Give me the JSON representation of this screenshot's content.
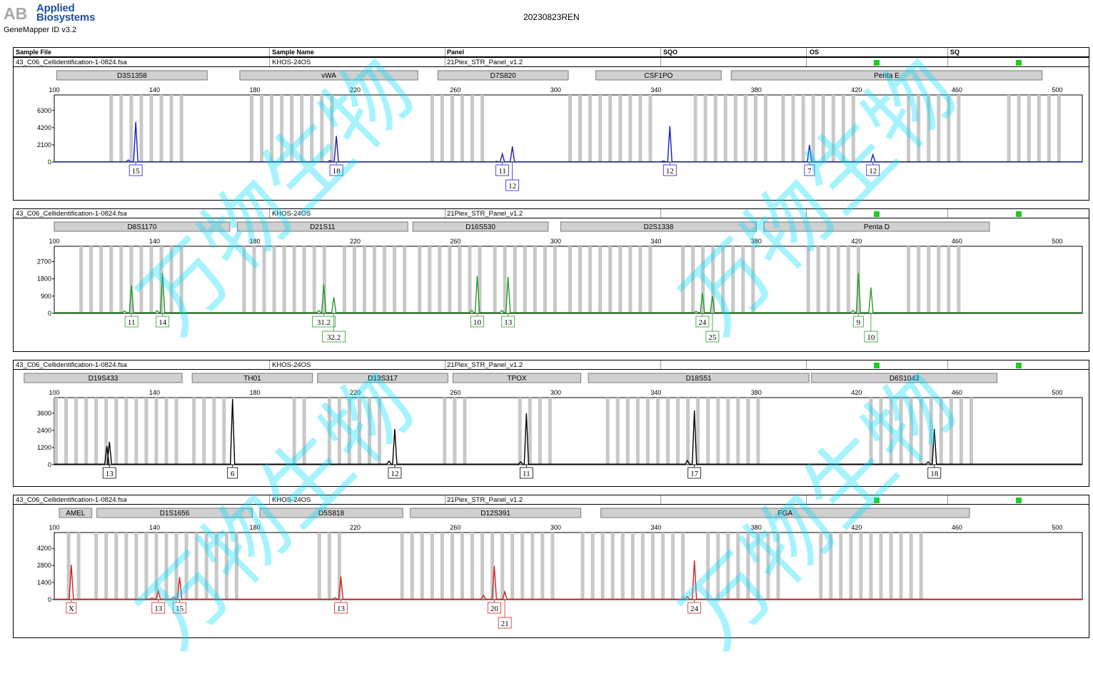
{
  "header": {
    "logo_line1": "Applied",
    "logo_line2": "Biosystems",
    "logo_mark": "AB",
    "software": "GeneMapper ID v3.2",
    "report_title": "20230823REN"
  },
  "columns": {
    "sample_file": "Sample File",
    "sample_name": "Sample Name",
    "panel": "Panel",
    "sqo": "SQO",
    "os": "OS",
    "sq": "SQ"
  },
  "status_colors": {
    "flag": "#22cc22"
  },
  "watermark": "万物生物",
  "chart_data": [
    {
      "type": "line",
      "sample_file": "43_C06_Cellidentification-1-0824.fsa",
      "sample_name": "KHOS-24OS",
      "panel": "21Plex_STR_Panel_v1.2",
      "color": "#1a1acc",
      "xlim": [
        100,
        510
      ],
      "xticks": [
        100,
        140,
        180,
        220,
        260,
        300,
        340,
        380,
        420,
        460,
        500
      ],
      "ylim": [
        0,
        8200
      ],
      "yticks": [
        0,
        2100,
        4200,
        6300
      ],
      "grid": "allelic bins",
      "markers": [
        {
          "name": "D3S1358",
          "start": 101,
          "end": 161
        },
        {
          "name": "vWA",
          "start": 174,
          "end": 245
        },
        {
          "name": "D7S820",
          "start": 253,
          "end": 305
        },
        {
          "name": "CSF1PO",
          "start": 316,
          "end": 366
        },
        {
          "name": "Penta E",
          "start": 370,
          "end": 494
        }
      ],
      "peaks": [
        {
          "x": 132.5,
          "y": 4900,
          "label": "15"
        },
        {
          "x": 212.5,
          "y": 3200,
          "label": "18"
        },
        {
          "x": 278.7,
          "y": 1000,
          "label": "11"
        },
        {
          "x": 282.7,
          "y": 1900,
          "label": "12"
        },
        {
          "x": 345.5,
          "y": 4400,
          "label": "12"
        },
        {
          "x": 401.2,
          "y": 2100,
          "label": "7"
        },
        {
          "x": 426.5,
          "y": 900,
          "label": "12"
        }
      ],
      "minor_peaks": [
        [
          129.5,
          250
        ],
        [
          210,
          180
        ],
        [
          276.5,
          80
        ],
        [
          343,
          120
        ]
      ]
    },
    {
      "type": "line",
      "sample_file": "43_C06_Cellidentification-1-0824.fsa",
      "sample_name": "KHOS-24OS",
      "panel": "21Plex_STR_Panel_v1.2",
      "color": "#2a9a2a",
      "xlim": [
        100,
        510
      ],
      "xticks": [
        100,
        140,
        180,
        220,
        260,
        300,
        340,
        380,
        420,
        460,
        500
      ],
      "ylim": [
        0,
        3500
      ],
      "yticks": [
        0,
        900,
        1800,
        2700
      ],
      "grid": "allelic bins",
      "markers": [
        {
          "name": "D8S1170",
          "start": 100,
          "end": 170
        },
        {
          "name": "D21S11",
          "start": 173,
          "end": 241
        },
        {
          "name": "D16S530",
          "start": 243,
          "end": 297
        },
        {
          "name": "D2S1338",
          "start": 302,
          "end": 380
        },
        {
          "name": "Penta D",
          "start": 383,
          "end": 473
        }
      ],
      "peaks": [
        {
          "x": 130.8,
          "y": 1450,
          "label": "11"
        },
        {
          "x": 143.2,
          "y": 2100,
          "label": "14"
        },
        {
          "x": 207.5,
          "y": 1500,
          "label": "31.2"
        },
        {
          "x": 211.5,
          "y": 850,
          "label": "32.2"
        },
        {
          "x": 268.7,
          "y": 1950,
          "label": "10"
        },
        {
          "x": 281,
          "y": 1900,
          "label": "13"
        },
        {
          "x": 358.5,
          "y": 1050,
          "label": "24"
        },
        {
          "x": 362.5,
          "y": 900,
          "label": "25"
        },
        {
          "x": 420.7,
          "y": 2100,
          "label": "9"
        },
        {
          "x": 425.7,
          "y": 1350,
          "label": "10"
        }
      ],
      "minor_peaks": [
        [
          128,
          120
        ],
        [
          141,
          140
        ],
        [
          205.5,
          150
        ],
        [
          266.5,
          160
        ],
        [
          278.5,
          150
        ],
        [
          356,
          110
        ],
        [
          418.5,
          170
        ]
      ]
    },
    {
      "type": "line",
      "sample_file": "43_C06_Cellidentification-1-0824.fsa",
      "sample_name": "KHOS-24OS",
      "panel": "21Plex_STR_Panel_v1.2",
      "color": "#000000",
      "xlim": [
        100,
        510
      ],
      "xticks": [
        100,
        140,
        180,
        220,
        260,
        300,
        340,
        380,
        420,
        460,
        500
      ],
      "ylim": [
        0,
        4700
      ],
      "yticks": [
        0,
        1200,
        2400,
        3600
      ],
      "grid": "allelic bins",
      "markers": [
        {
          "name": "D19S433",
          "start": 88,
          "end": 151
        },
        {
          "name": "TH01",
          "start": 155,
          "end": 203
        },
        {
          "name": "D13S317",
          "start": 205,
          "end": 257
        },
        {
          "name": "TPOX",
          "start": 259,
          "end": 310
        },
        {
          "name": "D18S51",
          "start": 313,
          "end": 401
        },
        {
          "name": "D6S1043",
          "start": 402,
          "end": 476
        }
      ],
      "peaks": [
        {
          "x": 122,
          "y": 1600,
          "label": "13"
        },
        {
          "x": 171.1,
          "y": 4600,
          "label": "6"
        },
        {
          "x": 235.8,
          "y": 2500,
          "label": "12"
        },
        {
          "x": 288.3,
          "y": 3600,
          "label": "11"
        },
        {
          "x": 355.3,
          "y": 3800,
          "label": "17"
        },
        {
          "x": 451,
          "y": 2500,
          "label": "18"
        }
      ],
      "minor_peaks": [
        [
          121,
          1300
        ],
        [
          233.5,
          250
        ],
        [
          286,
          200
        ],
        [
          352.5,
          300
        ],
        [
          448.5,
          200
        ]
      ]
    },
    {
      "type": "line",
      "sample_file": "43_C06_Cellidentification-1-0824.fsa",
      "sample_name": "KHOS-24OS",
      "panel": "21Plex_STR_Panel_v1.2",
      "color": "#d42020",
      "xlim": [
        100,
        510
      ],
      "xticks": [
        100,
        140,
        180,
        220,
        260,
        300,
        340,
        380,
        420,
        460,
        500
      ],
      "ylim": [
        0,
        5500
      ],
      "yticks": [
        0,
        1400,
        2800,
        4200
      ],
      "grid": "allelic bins",
      "markers": [
        {
          "name": "AMEL",
          "start": 102,
          "end": 115
        },
        {
          "name": "D1S1656",
          "start": 117,
          "end": 179
        },
        {
          "name": "D5S818",
          "start": 182,
          "end": 239
        },
        {
          "name": "D12S391",
          "start": 242,
          "end": 310
        },
        {
          "name": "FGA",
          "start": 318,
          "end": 465
        }
      ],
      "peaks": [
        {
          "x": 106.8,
          "y": 2850,
          "label": "X"
        },
        {
          "x": 141.5,
          "y": 700,
          "label": "13"
        },
        {
          "x": 150,
          "y": 1850,
          "label": "15"
        },
        {
          "x": 214.3,
          "y": 1900,
          "label": "13"
        },
        {
          "x": 275.5,
          "y": 2750,
          "label": "20"
        },
        {
          "x": 279.7,
          "y": 650,
          "label": "21"
        },
        {
          "x": 355.3,
          "y": 3200,
          "label": "24"
        }
      ],
      "minor_peaks": [
        [
          139,
          150
        ],
        [
          147.5,
          200
        ],
        [
          212,
          150
        ],
        [
          271.2,
          350
        ],
        [
          352.5,
          250
        ]
      ]
    }
  ]
}
